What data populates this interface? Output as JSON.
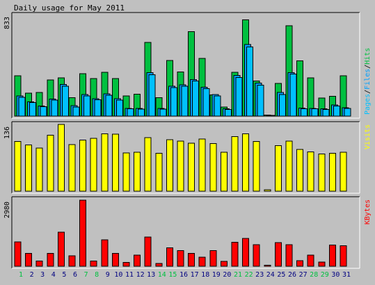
{
  "title": "Daily usage for May 2011",
  "colors": {
    "hits": "#00c040",
    "files": "#00a0ff",
    "pages": "#00c0ff",
    "visits": "#ffff00",
    "kbytes": "#ff0000",
    "weekend_label": "#00c040",
    "weekday_label": "#000080",
    "background": "#c0c0c0"
  },
  "chart_data": [
    {
      "type": "bar",
      "panel": "hits-files-pages",
      "y_max_label": "833",
      "ylim": [
        0,
        833
      ],
      "legend": {
        "pages": "Pages",
        "files": "Files",
        "hits": "Hits",
        "sep": "/"
      },
      "categories": [
        "1",
        "2",
        "3",
        "4",
        "5",
        "6",
        "7",
        "8",
        "9",
        "10",
        "11",
        "12",
        "13",
        "14",
        "15",
        "16",
        "17",
        "18",
        "19",
        "20",
        "21",
        "22",
        "23",
        "24",
        "25",
        "26",
        "27",
        "28",
        "29",
        "30",
        "31"
      ],
      "series": [
        {
          "name": "Hits",
          "values": [
            333,
            189,
            194,
            300,
            315,
            152,
            351,
            309,
            363,
            311,
            168,
            180,
            609,
            152,
            461,
            366,
            697,
            478,
            174,
            76,
            361,
            797,
            290,
            10,
            270,
            746,
            458,
            316,
            150,
            165,
            333
          ]
        },
        {
          "name": "Files",
          "values": [
            167,
            119,
            83,
            140,
            260,
            87,
            178,
            144,
            184,
            144,
            63,
            63,
            359,
            63,
            248,
            259,
            303,
            237,
            177,
            61,
            335,
            591,
            272,
            5,
            195,
            358,
            66,
            64,
            61,
            92,
            68
          ]
        },
        {
          "name": "Pages",
          "values": [
            154,
            112,
            78,
            132,
            248,
            75,
            166,
            134,
            172,
            133,
            60,
            58,
            342,
            57,
            236,
            248,
            290,
            226,
            166,
            55,
            318,
            573,
            257,
            3,
            179,
            348,
            61,
            59,
            55,
            84,
            63
          ]
        }
      ]
    },
    {
      "type": "bar",
      "panel": "visits",
      "y_max_label": "136",
      "ylim": [
        0,
        136
      ],
      "legend": {
        "visits": "Visits"
      },
      "categories": [
        "1",
        "2",
        "3",
        "4",
        "5",
        "6",
        "7",
        "8",
        "9",
        "10",
        "11",
        "12",
        "13",
        "14",
        "15",
        "16",
        "17",
        "18",
        "19",
        "20",
        "21",
        "22",
        "23",
        "24",
        "25",
        "26",
        "27",
        "28",
        "29",
        "30",
        "31"
      ],
      "series": [
        {
          "name": "Visits",
          "values": [
            101,
            94,
            88,
            114,
            136,
            95,
            104,
            108,
            117,
            116,
            78,
            79,
            109,
            77,
            105,
            102,
            98,
            106,
            97,
            79,
            111,
            117,
            101,
            3,
            93,
            102,
            85,
            80,
            76,
            77,
            79
          ]
        }
      ]
    },
    {
      "type": "bar",
      "panel": "kbytes",
      "y_max_label": "2980",
      "ylim": [
        0,
        2980
      ],
      "legend": {
        "kbytes": "KBytes"
      },
      "categories": [
        "1",
        "2",
        "3",
        "4",
        "5",
        "6",
        "7",
        "8",
        "9",
        "10",
        "11",
        "12",
        "13",
        "14",
        "15",
        "16",
        "17",
        "18",
        "19",
        "20",
        "21",
        "22",
        "23",
        "24",
        "25",
        "26",
        "27",
        "28",
        "29",
        "30",
        "31"
      ],
      "series": [
        {
          "name": "KBytes",
          "values": [
            1100,
            575,
            235,
            580,
            1536,
            475,
            2980,
            232,
            1195,
            580,
            174,
            500,
            1314,
            133,
            826,
            700,
            580,
            400,
            700,
            221,
            1083,
            1260,
            970,
            47,
            1073,
            970,
            246,
            500,
            189,
            950,
            920
          ]
        }
      ]
    }
  ],
  "weekend_days": [
    1,
    7,
    8,
    14,
    15,
    21,
    22,
    28,
    29
  ]
}
